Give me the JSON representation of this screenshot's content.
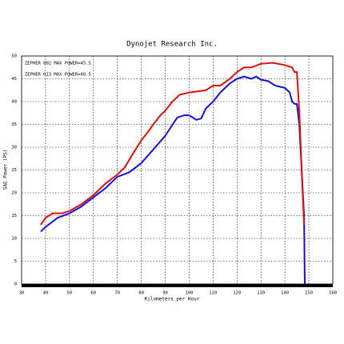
{
  "chart_data": {
    "type": "line",
    "title": "Dynojet  Research  Inc.",
    "x_label": "Kilometers per Hour",
    "y_label": "SAE Power (PS)",
    "xlim": [
      30,
      160
    ],
    "xticks": [
      30,
      40,
      50,
      60,
      70,
      80,
      90,
      100,
      110,
      120,
      130,
      140,
      150,
      160
    ],
    "ylim": [
      0,
      50
    ],
    "yticks": [
      0,
      5,
      10,
      15,
      20,
      25,
      30,
      35,
      40,
      45,
      50
    ],
    "grid": true,
    "series": [
      {
        "name": "ZEPHER 002  MAX POWER=45.5",
        "color": "#1010e0",
        "x": [
          38,
          40,
          45,
          50,
          55,
          60,
          65,
          70,
          75,
          80,
          85,
          90,
          95,
          98,
          100,
          103,
          105,
          107,
          110,
          113,
          117,
          120,
          123,
          126,
          128,
          130,
          133,
          136,
          140,
          142,
          143,
          144,
          145,
          146,
          147,
          148,
          148.3
        ],
        "values": [
          11.5,
          12.5,
          14.5,
          15.5,
          17,
          19,
          21,
          23.5,
          24.5,
          26.5,
          29.5,
          32.5,
          36.5,
          37,
          37,
          36,
          36.3,
          38.5,
          40,
          42,
          44,
          45,
          45.5,
          45,
          45.5,
          44.8,
          44.5,
          43.5,
          43,
          42,
          40,
          39.5,
          39.5,
          35,
          25,
          15,
          0
        ]
      },
      {
        "name": "ZEPHER 013  MAX POWER=48.5",
        "color": "#e01010",
        "x": [
          38,
          40,
          43,
          47,
          50,
          55,
          60,
          65,
          70,
          73,
          77,
          80,
          83,
          85,
          88,
          90,
          93,
          96,
          100,
          103,
          107,
          110,
          113,
          117,
          120,
          123,
          126,
          130,
          135,
          140,
          143,
          144,
          145,
          146,
          147,
          148
        ],
        "values": [
          13,
          14.5,
          15.5,
          15.5,
          16,
          17.5,
          19.5,
          22,
          24,
          25.5,
          29,
          31.5,
          33.5,
          35,
          37,
          38,
          40,
          41.5,
          42,
          42.2,
          42.5,
          43.5,
          43.5,
          45,
          46.5,
          47.5,
          47.5,
          48.3,
          48.5,
          48,
          47.5,
          46.5,
          46.5,
          38,
          25,
          13
        ]
      }
    ]
  }
}
